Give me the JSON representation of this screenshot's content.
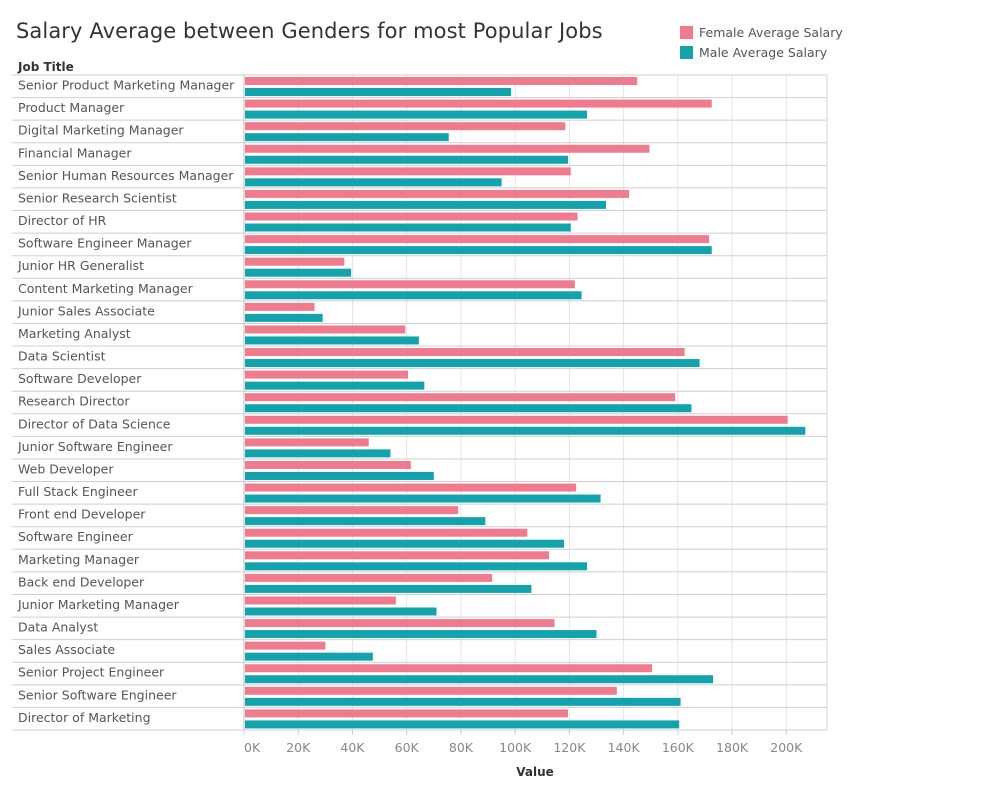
{
  "colors": {
    "female": "#f07b8e",
    "male": "#13a3ad",
    "grid": "#e5e5e5",
    "row_line": "#cfcfcf"
  },
  "legend": [
    {
      "label": "Female Average Salary",
      "color": "#f07b8e"
    },
    {
      "label": "Male Average Salary",
      "color": "#13a3ad"
    }
  ],
  "chart_data": {
    "type": "bar",
    "orientation": "horizontal",
    "title": "Salary Average between Genders for most Popular Jobs",
    "category_header": "Job Title",
    "xlabel": "Value",
    "xlim": [
      0,
      215000
    ],
    "x_ticks": [
      0,
      20000,
      40000,
      60000,
      80000,
      100000,
      120000,
      140000,
      160000,
      180000,
      200000
    ],
    "x_tick_labels": [
      "0K",
      "20K",
      "40K",
      "60K",
      "80K",
      "100K",
      "120K",
      "140K",
      "160K",
      "180K",
      "200K"
    ],
    "grid": true,
    "legend_position": "top-right",
    "categories": [
      "Senior Product Marketing Manager",
      "Product Manager",
      "Digital Marketing Manager",
      "Financial Manager",
      "Senior Human Resources Manager",
      "Senior Research Scientist",
      "Director of HR",
      "Software Engineer Manager",
      "Junior HR Generalist",
      "Content Marketing Manager",
      "Junior Sales Associate",
      "Marketing Analyst",
      "Data Scientist",
      "Software Developer",
      "Research Director",
      "Director of Data Science",
      "Junior Software Engineer",
      "Web Developer",
      "Full Stack Engineer",
      "Front end Developer",
      "Software Engineer",
      "Marketing Manager",
      "Back end Developer",
      "Junior Marketing Manager",
      "Data Analyst",
      "Sales Associate",
      "Senior Project Engineer",
      "Senior Software Engineer",
      "Director of Marketing"
    ],
    "series": [
      {
        "name": "Female Average Salary",
        "values": [
          145000,
          172500,
          118500,
          149500,
          120500,
          142000,
          123000,
          171500,
          37000,
          122000,
          26000,
          59500,
          162500,
          60500,
          159000,
          200500,
          46000,
          61500,
          122500,
          79000,
          104500,
          112500,
          91500,
          56000,
          114500,
          30000,
          150500,
          137500,
          119500
        ]
      },
      {
        "name": "Male Average Salary",
        "values": [
          98500,
          126500,
          75500,
          119500,
          95000,
          133500,
          120500,
          172500,
          39500,
          124500,
          29000,
          64500,
          168000,
          66500,
          165000,
          207000,
          54000,
          70000,
          131500,
          89000,
          118000,
          126500,
          106000,
          71000,
          130000,
          47500,
          173000,
          161000,
          160500
        ]
      }
    ]
  }
}
